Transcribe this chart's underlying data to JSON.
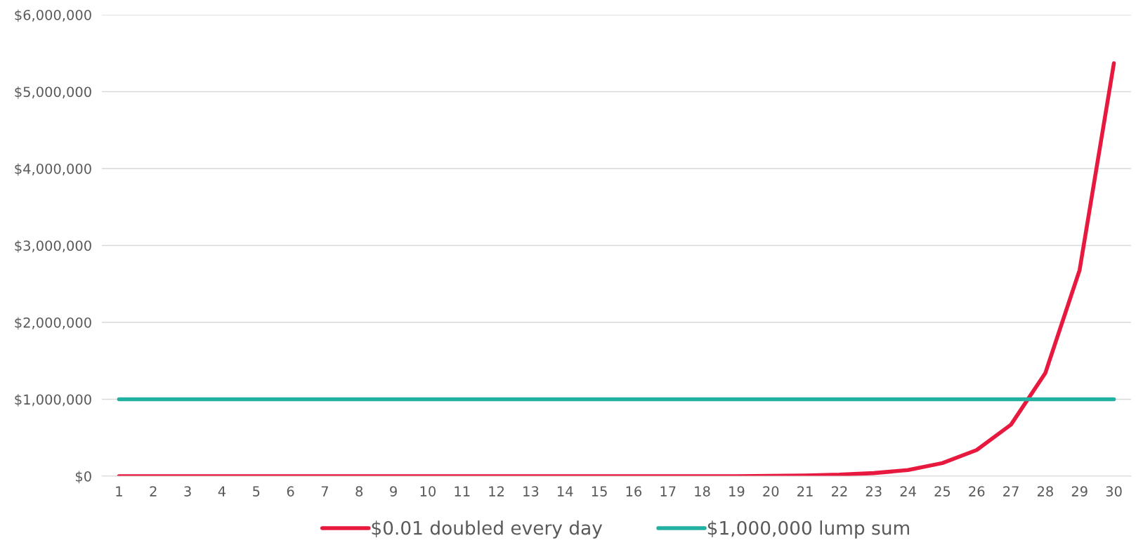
{
  "chart_data": {
    "type": "line",
    "categories": [
      "1",
      "2",
      "3",
      "4",
      "5",
      "6",
      "7",
      "8",
      "9",
      "10",
      "11",
      "12",
      "13",
      "14",
      "15",
      "16",
      "17",
      "18",
      "19",
      "20",
      "21",
      "22",
      "23",
      "24",
      "25",
      "26",
      "27",
      "28",
      "29",
      "30"
    ],
    "series": [
      {
        "name": "$0.01 doubled every day",
        "color": "#e8193f",
        "values": [
          0,
          0,
          0,
          0,
          0,
          0,
          0,
          0,
          0,
          0,
          0,
          0,
          0,
          0,
          0,
          0,
          0,
          0,
          0,
          5000,
          10000,
          20000,
          40000,
          80000,
          170000,
          340000,
          670000,
          1340000,
          2680000,
          5370000
        ]
      },
      {
        "name": "$1,000,000 lump sum",
        "color": "#22b0a0",
        "values": [
          1000000,
          1000000,
          1000000,
          1000000,
          1000000,
          1000000,
          1000000,
          1000000,
          1000000,
          1000000,
          1000000,
          1000000,
          1000000,
          1000000,
          1000000,
          1000000,
          1000000,
          1000000,
          1000000,
          1000000,
          1000000,
          1000000,
          1000000,
          1000000,
          1000000,
          1000000,
          1000000,
          1000000,
          1000000,
          1000000
        ]
      }
    ],
    "ylim": [
      0,
      6000000
    ],
    "yticks": [
      {
        "value": 0,
        "label": "$0"
      },
      {
        "value": 1000000,
        "label": "$1,000,000"
      },
      {
        "value": 2000000,
        "label": "$2,000,000"
      },
      {
        "value": 3000000,
        "label": "$3,000,000"
      },
      {
        "value": 4000000,
        "label": "$4,000,000"
      },
      {
        "value": 5000000,
        "label": "$5,000,000"
      },
      {
        "value": 6000000,
        "label": "$6,000,000"
      }
    ],
    "grid": "y",
    "legend": "bottom",
    "marker": "none",
    "line_style": "solid"
  }
}
